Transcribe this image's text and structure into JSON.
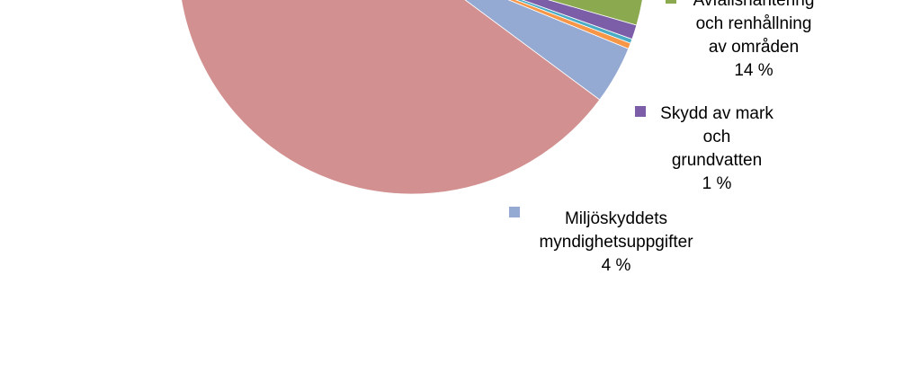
{
  "chart_data": {
    "type": "pie",
    "slices": [
      {
        "label_lines": [
          "Miljöskyddets",
          "myndighetsuppgifter"
        ],
        "value_label": "4 %",
        "value": 4,
        "color": "#95AAD3"
      },
      {
        "label_lines": [],
        "value_label": "",
        "value": 0.4,
        "color": "#F79646"
      },
      {
        "label_lines": [],
        "value_label": "",
        "value": 0.3,
        "color": "#4BACC6"
      },
      {
        "label_lines": [
          "Skydd av mark",
          "och",
          "grundvatten"
        ],
        "value_label": "1 %",
        "value": 1,
        "color": "#7B5EA7"
      },
      {
        "label_lines": [
          "Avfallshantering",
          "och renhållning",
          "av områden"
        ],
        "value_label": "14 %",
        "value": 14,
        "color": "#8BAA50"
      },
      {
        "label_lines": [],
        "value_label": "",
        "value": 80.3,
        "color": "#D39090"
      }
    ]
  }
}
